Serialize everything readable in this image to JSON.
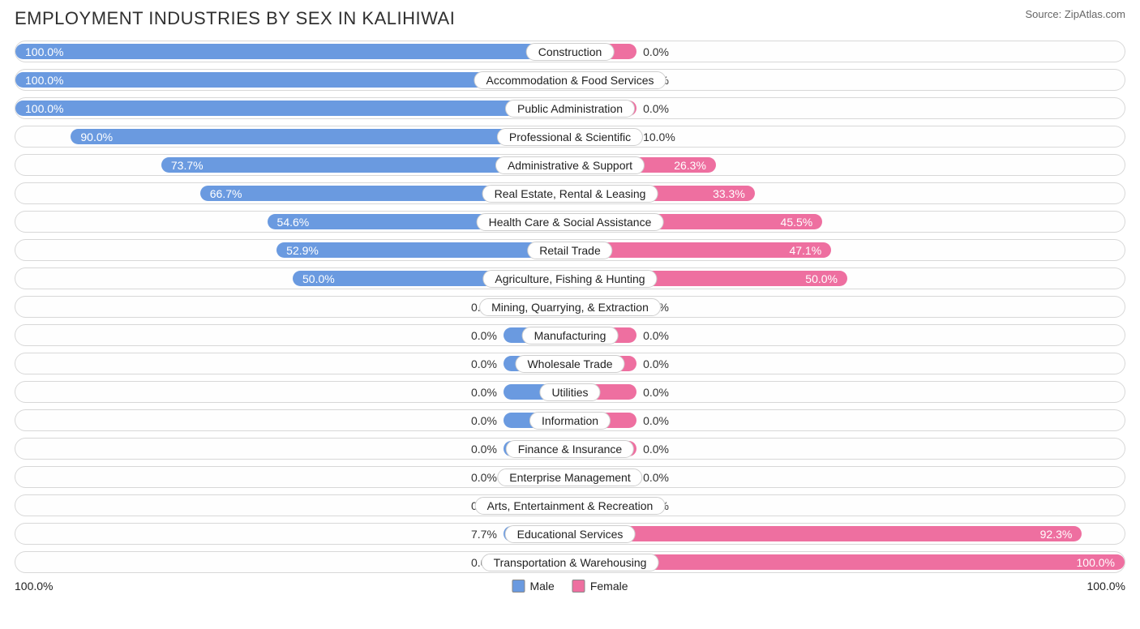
{
  "header": {
    "title": "EMPLOYMENT INDUSTRIES BY SEX IN KALIHIWAI",
    "source": "Source: ZipAtlas.com"
  },
  "chart": {
    "type": "diverging-bar",
    "axis_left_label": "100.0%",
    "axis_right_label": "100.0%",
    "legend": {
      "male": {
        "label": "Male",
        "color": "#6a9ae0"
      },
      "female": {
        "label": "Female",
        "color": "#ee6fa0"
      }
    },
    "style": {
      "male_bar_color": "#6a9ae0",
      "female_bar_color": "#ee6fa0",
      "male_text_in_bar_color": "#ffffff",
      "male_text_out_color": "#333333",
      "female_text_in_bar_color": "#ffffff",
      "female_text_out_color": "#333333",
      "background_color": "#ffffff",
      "row_border_color": "#d8d8d8",
      "label_pill_border_color": "#cfcfcf",
      "text_color": "#222222",
      "min_bar_percent": 12,
      "in_bar_threshold": 18
    },
    "rows": [
      {
        "label": "Construction",
        "male": 100.0,
        "female": 0.0
      },
      {
        "label": "Accommodation & Food Services",
        "male": 100.0,
        "female": 0.0
      },
      {
        "label": "Public Administration",
        "male": 100.0,
        "female": 0.0
      },
      {
        "label": "Professional & Scientific",
        "male": 90.0,
        "female": 10.0
      },
      {
        "label": "Administrative & Support",
        "male": 73.7,
        "female": 26.3
      },
      {
        "label": "Real Estate, Rental & Leasing",
        "male": 66.7,
        "female": 33.3
      },
      {
        "label": "Health Care & Social Assistance",
        "male": 54.6,
        "female": 45.5
      },
      {
        "label": "Retail Trade",
        "male": 52.9,
        "female": 47.1
      },
      {
        "label": "Agriculture, Fishing & Hunting",
        "male": 50.0,
        "female": 50.0
      },
      {
        "label": "Mining, Quarrying, & Extraction",
        "male": 0.0,
        "female": 0.0
      },
      {
        "label": "Manufacturing",
        "male": 0.0,
        "female": 0.0
      },
      {
        "label": "Wholesale Trade",
        "male": 0.0,
        "female": 0.0
      },
      {
        "label": "Utilities",
        "male": 0.0,
        "female": 0.0
      },
      {
        "label": "Information",
        "male": 0.0,
        "female": 0.0
      },
      {
        "label": "Finance & Insurance",
        "male": 0.0,
        "female": 0.0
      },
      {
        "label": "Enterprise Management",
        "male": 0.0,
        "female": 0.0
      },
      {
        "label": "Arts, Entertainment & Recreation",
        "male": 0.0,
        "female": 0.0
      },
      {
        "label": "Educational Services",
        "male": 7.7,
        "female": 92.3
      },
      {
        "label": "Transportation & Warehousing",
        "male": 0.0,
        "female": 100.0
      }
    ]
  }
}
